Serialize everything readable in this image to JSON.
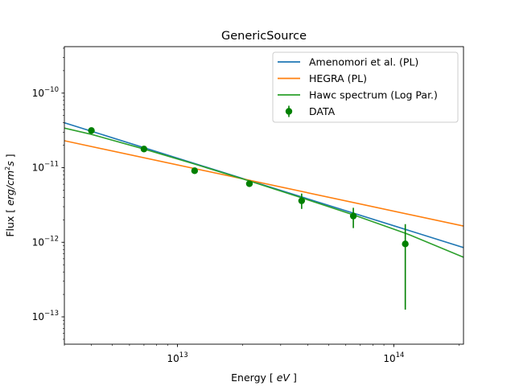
{
  "chart_data": {
    "type": "line",
    "title": "GenericSource",
    "xlabel_prefix": "Energy  [ ",
    "xlabel_unit": "eV",
    "xlabel_suffix": " ]",
    "ylabel_prefix": "Flux  [ ",
    "ylabel_unit": "erg/cm",
    "ylabel_unit_exp": "2",
    "ylabel_unit_rest": "s",
    "ylabel_suffix": " ]",
    "xscale": "log",
    "yscale": "log",
    "xlim": [
      3000000000000.0,
      210000000000000.0
    ],
    "ylim": [
      4.3e-14,
      4.2e-10
    ],
    "x_tick_labels": [
      {
        "value": 10000000000000.0,
        "base": "10",
        "exp": "13"
      },
      {
        "value": 100000000000000.0,
        "base": "10",
        "exp": "14"
      }
    ],
    "y_tick_labels": [
      {
        "value": 1e-13,
        "base": "10",
        "exp": "−13"
      },
      {
        "value": 1e-12,
        "base": "10",
        "exp": "−12"
      },
      {
        "value": 1e-11,
        "base": "10",
        "exp": "−11"
      },
      {
        "value": 1e-10,
        "base": "10",
        "exp": "−10"
      }
    ],
    "legend_position": "top-right",
    "series": [
      {
        "name": "Amenomori et al. (PL)",
        "kind": "line",
        "color": "#1f77b4",
        "x": [
          3000000000000.0,
          210000000000000.0
        ],
        "y": [
          4e-11,
          8.5e-13
        ]
      },
      {
        "name": "HEGRA (PL)",
        "kind": "line",
        "color": "#ff7f0e",
        "x": [
          3000000000000.0,
          210000000000000.0
        ],
        "y": [
          2.3e-11,
          1.65e-12
        ]
      },
      {
        "name": "Hawc spectrum (Log Par.)",
        "kind": "line",
        "color": "#2ca02c",
        "x": [
          3000000000000.0,
          4000000000000.0,
          7000000000000.0,
          12000000000000.0,
          22000000000000.0,
          38000000000000.0,
          66000000000000.0,
          115000000000000.0,
          210000000000000.0
        ],
        "y": [
          3.4e-11,
          2.8e-11,
          1.78e-11,
          1.12e-11,
          6.5e-12,
          3.9e-12,
          2.3e-12,
          1.3e-12,
          6.3e-13
        ]
      },
      {
        "name": "DATA",
        "kind": "errorbar",
        "color": "#008000",
        "points": [
          {
            "x": 4000000000000.0,
            "y": 3.15e-11,
            "ylo": 2.9e-11,
            "yhi": 3.4e-11
          },
          {
            "x": 7000000000000.0,
            "y": 1.78e-11,
            "ylo": 1.7e-11,
            "yhi": 1.86e-11
          },
          {
            "x": 12000000000000.0,
            "y": 9.1e-12,
            "ylo": 8.6e-12,
            "yhi": 9.6e-12
          },
          {
            "x": 21500000000000.0,
            "y": 6.1e-12,
            "ylo": 5.6e-12,
            "yhi": 6.6e-12
          },
          {
            "x": 37500000000000.0,
            "y": 3.6e-12,
            "ylo": 2.8e-12,
            "yhi": 4.5e-12
          },
          {
            "x": 65000000000000.0,
            "y": 2.25e-12,
            "ylo": 1.55e-12,
            "yhi": 2.9e-12
          },
          {
            "x": 113000000000000.0,
            "y": 9.5e-13,
            "ylo": 1.25e-13,
            "yhi": 1.75e-12
          }
        ]
      }
    ]
  }
}
